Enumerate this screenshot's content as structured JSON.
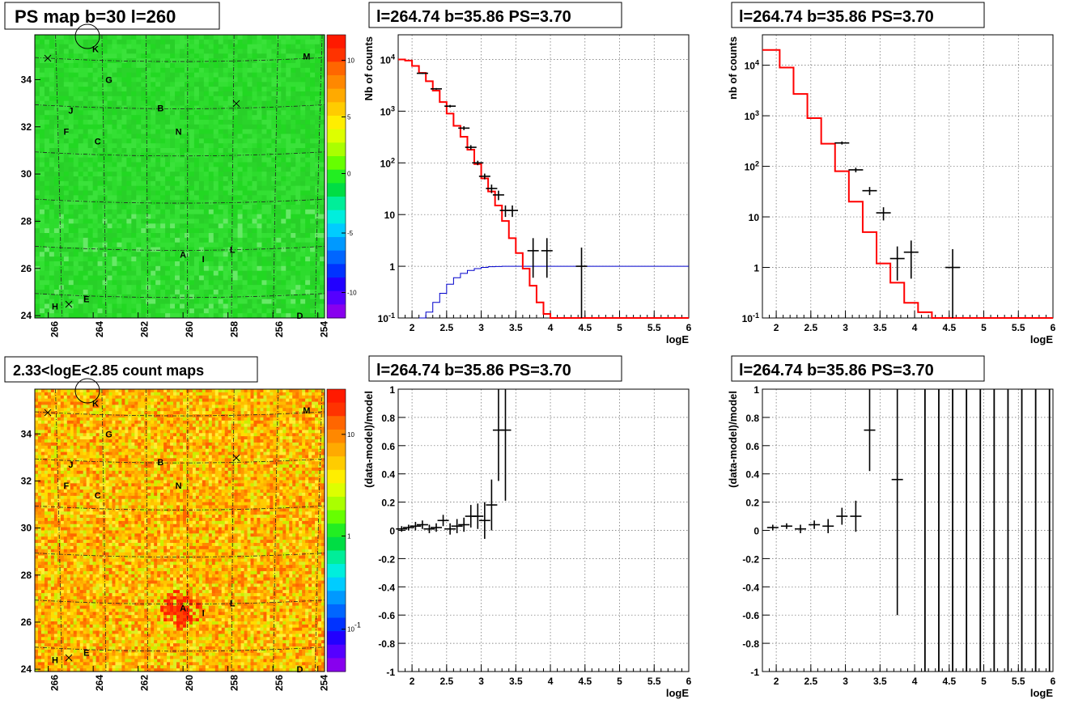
{
  "colors": {
    "map_base": "#2ddc2d",
    "model_line": "#ff0000",
    "efficiency_line": "#0000cc",
    "data_marker": "#000000",
    "grid": "#888888"
  },
  "chart_data": [
    {
      "id": "ps_map",
      "type": "heatmap",
      "title": "PS map b=30 l=260",
      "xlabel": "",
      "ylabel": "",
      "x_ticks": [
        "266",
        "264",
        "262",
        "260",
        "258",
        "256",
        "254"
      ],
      "y_ticks": [
        "24",
        "26",
        "28",
        "30",
        "32",
        "34"
      ],
      "colorbar_ticks": [
        "10",
        "5",
        "0",
        "-5",
        "-10"
      ],
      "labels": [
        {
          "text": "K",
          "l": 263.9,
          "b": 35.3
        },
        {
          "text": "M",
          "l": 254.5,
          "b": 35.0
        },
        {
          "text": "G",
          "l": 263.3,
          "b": 34.0
        },
        {
          "text": "J",
          "l": 265.0,
          "b": 32.7
        },
        {
          "text": "B",
          "l": 261.0,
          "b": 32.8
        },
        {
          "text": "F",
          "l": 265.2,
          "b": 31.8
        },
        {
          "text": "N",
          "l": 260.2,
          "b": 31.8
        },
        {
          "text": "C",
          "l": 263.8,
          "b": 31.4
        },
        {
          "text": "A",
          "l": 260.0,
          "b": 26.6
        },
        {
          "text": "I",
          "l": 259.1,
          "b": 26.4
        },
        {
          "text": "L",
          "l": 257.8,
          "b": 26.8
        },
        {
          "text": "E",
          "l": 264.3,
          "b": 24.7
        },
        {
          "text": "H",
          "l": 265.7,
          "b": 24.4
        },
        {
          "text": "D",
          "l": 254.8,
          "b": 24.0
        }
      ]
    },
    {
      "id": "count_map",
      "type": "heatmap",
      "title": "2.33<logE<2.85 count maps",
      "xlabel": "",
      "ylabel": "",
      "x_ticks": [
        "266",
        "264",
        "262",
        "260",
        "258",
        "256",
        "254"
      ],
      "y_ticks": [
        "24",
        "26",
        "28",
        "30",
        "32",
        "34"
      ],
      "colorbar_ticks": [
        "10",
        "1",
        "10^-1"
      ],
      "labels": [
        {
          "text": "K",
          "l": 263.9,
          "b": 35.3
        },
        {
          "text": "M",
          "l": 254.5,
          "b": 35.0
        },
        {
          "text": "G",
          "l": 263.3,
          "b": 34.0
        },
        {
          "text": "J",
          "l": 265.0,
          "b": 32.7
        },
        {
          "text": "B",
          "l": 261.0,
          "b": 32.8
        },
        {
          "text": "F",
          "l": 265.2,
          "b": 31.8
        },
        {
          "text": "N",
          "l": 260.2,
          "b": 31.8
        },
        {
          "text": "C",
          "l": 263.8,
          "b": 31.4
        },
        {
          "text": "A",
          "l": 260.0,
          "b": 26.6
        },
        {
          "text": "I",
          "l": 259.1,
          "b": 26.4
        },
        {
          "text": "L",
          "l": 257.8,
          "b": 26.8
        },
        {
          "text": "E",
          "l": 264.3,
          "b": 24.7
        },
        {
          "text": "H",
          "l": 265.7,
          "b": 24.4
        },
        {
          "text": "D",
          "l": 254.8,
          "b": 24.0
        }
      ]
    },
    {
      "id": "spec1",
      "type": "line",
      "title": "l=264.74 b=35.86 PS=3.70",
      "xlabel": "logE",
      "ylabel": "Nb of counts",
      "xlim": [
        1.8,
        6
      ],
      "ylim": [
        0.1,
        30000
      ],
      "log_y": true,
      "x_ticks": [
        "2",
        "2.5",
        "3",
        "3.5",
        "4",
        "4.5",
        "5",
        "5.5",
        "6"
      ],
      "y_ticks": [
        "10^-1",
        "1",
        "10",
        "10^2",
        "10^3",
        "10^4"
      ],
      "grid": true,
      "model_edges": [
        1.8,
        1.9,
        2.0,
        2.1,
        2.2,
        2.3,
        2.4,
        2.5,
        2.6,
        2.7,
        2.8,
        2.9,
        3.0,
        3.1,
        3.2,
        3.3,
        3.4,
        3.5,
        3.6,
        3.7,
        3.8,
        3.9,
        4.0,
        4.1,
        4.2,
        6.0
      ],
      "model_values": [
        10000,
        9500,
        7500,
        5500,
        3800,
        2500,
        1500,
        900,
        520,
        320,
        180,
        95,
        50,
        28,
        15,
        7.5,
        3.5,
        1.8,
        0.9,
        0.42,
        0.2,
        0.12,
        0.1,
        0.1,
        0.1
      ],
      "efficiency_edges": [
        2.1,
        2.2,
        2.3,
        2.4,
        2.5,
        2.6,
        2.7,
        2.8,
        2.9,
        3.0,
        3.1,
        3.2,
        3.3,
        6.0
      ],
      "efficiency_values": [
        0.1,
        0.13,
        0.2,
        0.3,
        0.45,
        0.6,
        0.73,
        0.83,
        0.9,
        0.95,
        0.98,
        0.99,
        1.0
      ],
      "data_points": [
        {
          "x": 2.15,
          "y": 5400,
          "ylo": 5250,
          "yhi": 5550
        },
        {
          "x": 2.35,
          "y": 2700,
          "ylo": 2600,
          "yhi": 2800
        },
        {
          "x": 2.55,
          "y": 1250,
          "ylo": 1180,
          "yhi": 1320
        },
        {
          "x": 2.75,
          "y": 470,
          "ylo": 430,
          "yhi": 510
        },
        {
          "x": 2.85,
          "y": 200,
          "ylo": 180,
          "yhi": 220
        },
        {
          "x": 2.95,
          "y": 100,
          "ylo": 90,
          "yhi": 110
        },
        {
          "x": 3.05,
          "y": 55,
          "ylo": 48,
          "yhi": 62
        },
        {
          "x": 3.15,
          "y": 32,
          "ylo": 26,
          "yhi": 38
        },
        {
          "x": 3.25,
          "y": 24,
          "ylo": 19,
          "yhi": 29
        },
        {
          "x": 3.35,
          "y": 12,
          "ylo": 9,
          "yhi": 15
        },
        {
          "x": 3.45,
          "y": 12,
          "ylo": 9,
          "yhi": 15
        },
        {
          "x": 3.75,
          "y": 2,
          "ylo": 0.6,
          "yhi": 3.5
        },
        {
          "x": 3.95,
          "y": 2,
          "ylo": 0.6,
          "yhi": 3.5
        },
        {
          "x": 4.45,
          "y": 1,
          "ylo": 0.1,
          "yhi": 2.3
        }
      ]
    },
    {
      "id": "spec2",
      "type": "line",
      "title": "l=264.74 b=35.86 PS=3.70",
      "xlabel": "logE",
      "ylabel": "nb of counts",
      "xlim": [
        1.8,
        6
      ],
      "ylim": [
        0.1,
        40000
      ],
      "log_y": true,
      "x_ticks": [
        "2",
        "2.5",
        "3",
        "3.5",
        "4",
        "4.5",
        "5",
        "5.5",
        "6"
      ],
      "y_ticks": [
        "10^-1",
        "1",
        "10",
        "10^2",
        "10^3",
        "10^4"
      ],
      "grid": true,
      "model_edges": [
        1.8,
        2.05,
        2.25,
        2.45,
        2.65,
        2.85,
        3.05,
        3.25,
        3.45,
        3.65,
        3.85,
        4.05,
        4.25,
        6.0
      ],
      "model_values": [
        20000,
        9000,
        2700,
        900,
        280,
        80,
        20,
        5,
        1.2,
        0.5,
        0.2,
        0.13,
        0.1
      ],
      "data_points": [
        {
          "x": 2.95,
          "y": 290,
          "ylo": 270,
          "yhi": 310
        },
        {
          "x": 3.15,
          "y": 85,
          "ylo": 76,
          "yhi": 94
        },
        {
          "x": 3.35,
          "y": 33,
          "ylo": 27,
          "yhi": 39
        },
        {
          "x": 3.55,
          "y": 12,
          "ylo": 8.5,
          "yhi": 15.5
        },
        {
          "x": 3.75,
          "y": 1.5,
          "ylo": 0.55,
          "yhi": 2.6
        },
        {
          "x": 3.95,
          "y": 2,
          "ylo": 0.6,
          "yhi": 3.4
        },
        {
          "x": 4.55,
          "y": 1,
          "ylo": 0.1,
          "yhi": 2.3
        }
      ]
    },
    {
      "id": "resid1",
      "type": "scatter",
      "title": "l=264.74 b=35.86 PS=3.70",
      "xlabel": "logE",
      "ylabel": "(data-model)/model",
      "xlim": [
        1.8,
        6
      ],
      "ylim": [
        -1,
        1
      ],
      "x_ticks": [
        "2",
        "2.5",
        "3",
        "3.5",
        "4",
        "4.5",
        "5",
        "5.5",
        "6"
      ],
      "y_ticks": [
        "-1",
        "-0.8",
        "-0.6",
        "-0.4",
        "-0.2",
        "0",
        "0.2",
        "0.4",
        "0.6",
        "0.8",
        "1"
      ],
      "grid": true,
      "data_points": [
        {
          "x": 1.85,
          "y": 0.01,
          "err": 0.02
        },
        {
          "x": 1.95,
          "y": 0.02,
          "err": 0.02
        },
        {
          "x": 2.05,
          "y": 0.03,
          "err": 0.03
        },
        {
          "x": 2.15,
          "y": 0.04,
          "err": 0.03
        },
        {
          "x": 2.25,
          "y": 0.01,
          "err": 0.03
        },
        {
          "x": 2.35,
          "y": 0.02,
          "err": 0.03
        },
        {
          "x": 2.45,
          "y": 0.07,
          "err": 0.04
        },
        {
          "x": 2.55,
          "y": 0.01,
          "err": 0.04
        },
        {
          "x": 2.65,
          "y": 0.03,
          "err": 0.05
        },
        {
          "x": 2.75,
          "y": 0.04,
          "err": 0.05
        },
        {
          "x": 2.85,
          "y": 0.1,
          "err": 0.08
        },
        {
          "x": 2.95,
          "y": 0.1,
          "err": 0.09
        },
        {
          "x": 3.05,
          "y": 0.07,
          "err": 0.13
        },
        {
          "x": 3.15,
          "y": 0.18,
          "err": 0.18
        },
        {
          "x": 3.25,
          "y": 0.71,
          "err": 0.36
        },
        {
          "x": 3.35,
          "y": 0.71,
          "err": 0.5
        }
      ]
    },
    {
      "id": "resid2",
      "type": "scatter",
      "title": "l=264.74 b=35.86 PS=3.70",
      "xlabel": "logE",
      "ylabel": "(data-model)/model",
      "xlim": [
        1.8,
        6
      ],
      "ylim": [
        -1,
        1
      ],
      "x_ticks": [
        "2",
        "2.5",
        "3",
        "3.5",
        "4",
        "4.5",
        "5",
        "5.5",
        "6"
      ],
      "y_ticks": [
        "-1",
        "-0.8",
        "-0.6",
        "-0.4",
        "-0.2",
        "0",
        "0.2",
        "0.4",
        "0.6",
        "0.8",
        "1"
      ],
      "grid": true,
      "data_points": [
        {
          "x": 1.95,
          "y": 0.02,
          "err": 0.02
        },
        {
          "x": 2.15,
          "y": 0.03,
          "err": 0.02
        },
        {
          "x": 2.35,
          "y": 0.01,
          "err": 0.03
        },
        {
          "x": 2.55,
          "y": 0.04,
          "err": 0.03
        },
        {
          "x": 2.75,
          "y": 0.03,
          "err": 0.05
        },
        {
          "x": 2.95,
          "y": 0.1,
          "err": 0.06
        },
        {
          "x": 3.15,
          "y": 0.1,
          "err": 0.11
        },
        {
          "x": 3.35,
          "y": 0.71,
          "err": 0.29
        },
        {
          "x": 3.75,
          "y": 0.36,
          "err": 0.96
        }
      ],
      "full_range_bars_x": [
        4.15,
        4.35,
        4.55,
        4.75,
        4.95,
        5.15,
        5.35,
        5.55,
        5.75,
        5.95
      ]
    }
  ]
}
